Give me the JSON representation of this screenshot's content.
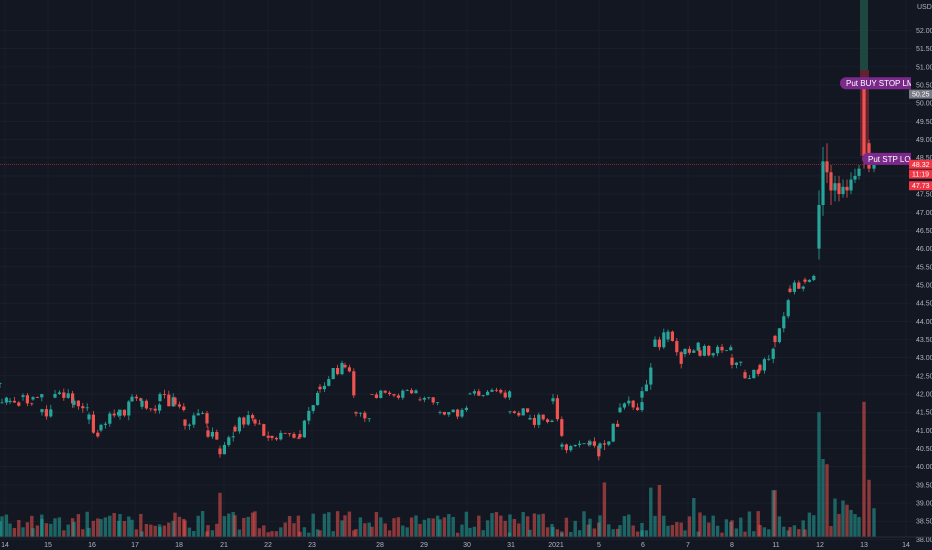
{
  "chart_data": {
    "type": "candlestick",
    "currency": "USD",
    "y_axis": {
      "ylim": [
        37.75,
        52.35
      ],
      "ticks": [
        "38.00",
        "38.50",
        "39.00",
        "39.50",
        "40.00",
        "40.50",
        "41.00",
        "41.50",
        "42.00",
        "42.50",
        "43.00",
        "43.50",
        "44.00",
        "44.50",
        "45.00",
        "45.50",
        "46.00",
        "46.50",
        "47.00",
        "47.50",
        "48.00",
        "48.50",
        "49.00",
        "49.50",
        "50.00",
        "50.50",
        "51.00",
        "51.50",
        "52.00"
      ]
    },
    "x_axis": {
      "labels": [
        "14",
        "15",
        "16",
        "17",
        "18",
        "21",
        "22",
        "23",
        "28",
        "29",
        "30",
        "31",
        "2021",
        "5",
        "6",
        "7",
        "8",
        "11",
        "12",
        "13",
        "14"
      ]
    },
    "price_tags": [
      {
        "text": "50.25",
        "value": 50.25,
        "color": "#787b86"
      },
      {
        "text": "48.32",
        "value": 48.32,
        "color": "#f23645"
      },
      {
        "text": "11:19",
        "value": 48.05,
        "color": "#f23645"
      },
      {
        "text": "47.73",
        "value": 47.73,
        "color": "#f23645"
      }
    ],
    "current_price": 48.32,
    "orders": [
      {
        "label": "Put BUY STOP LMT",
        "value": 50.55
      },
      {
        "label": "Put STP LOS",
        "value": 48.47
      }
    ],
    "highlight_band_color": "#1f4d44",
    "colors": {
      "up": "#26a69a",
      "down": "#ef5350",
      "order": "#7b2a8c",
      "grid": "#1f2330",
      "text": "#b2b5be"
    },
    "segments": [
      [
        0,
        2,
        "flat",
        42.3,
        42.3,
        0.35,
        7
      ],
      [
        2,
        10,
        "flat",
        41.75,
        41.75,
        0.2,
        8
      ],
      [
        10,
        23,
        "flat",
        41.78,
        41.78,
        0.2,
        9
      ],
      [
        23,
        33,
        "flat",
        41.92,
        41.92,
        0.2,
        10
      ],
      [
        33,
        42,
        "flat",
        41.85,
        41.85,
        0.2,
        11
      ],
      [
        42,
        55,
        "flat",
        41.5,
        41.5,
        0.22,
        12
      ],
      [
        55,
        74,
        "flat",
        41.9,
        41.9,
        0.22,
        13
      ],
      [
        74,
        89,
        "flat",
        41.7,
        41.7,
        0.22,
        14
      ],
      [
        89,
        101,
        "down",
        41.3,
        40.9,
        0.22,
        15
      ],
      [
        101,
        120,
        "up",
        41.0,
        41.6,
        0.22,
        16
      ],
      [
        120,
        132,
        "up",
        41.4,
        41.8,
        0.22,
        17
      ],
      [
        132,
        142,
        "flat",
        41.8,
        41.8,
        0.15,
        18
      ],
      [
        142,
        160,
        "flat",
        41.65,
        41.65,
        0.18,
        19
      ],
      [
        160,
        175,
        "flat",
        41.8,
        41.8,
        0.2,
        20
      ],
      [
        175,
        185,
        "down",
        41.9,
        41.3,
        0.2,
        21
      ],
      [
        185,
        208,
        "flat",
        41.3,
        41.3,
        0.2,
        22
      ],
      [
        208,
        220,
        "down",
        41.0,
        40.6,
        0.22,
        23
      ],
      [
        220,
        235,
        "up",
        40.5,
        41.1,
        0.22,
        24
      ],
      [
        235,
        255,
        "up",
        41.1,
        41.5,
        0.2,
        25
      ],
      [
        255,
        272,
        "down",
        41.3,
        40.8,
        0.2,
        26
      ],
      [
        272,
        300,
        "flat",
        40.85,
        40.85,
        0.12,
        27
      ],
      [
        300,
        320,
        "up",
        40.9,
        42.2,
        0.22,
        28
      ],
      [
        320,
        345,
        "up",
        42.2,
        42.85,
        0.2,
        29
      ],
      [
        345,
        356,
        "down",
        42.8,
        41.9,
        0.25,
        30
      ],
      [
        356,
        372,
        "flat",
        41.5,
        41.5,
        0.2,
        31
      ],
      [
        372,
        420,
        "flat",
        42.0,
        42.0,
        0.12,
        32
      ],
      [
        420,
        440,
        "flat",
        41.85,
        41.85,
        0.15,
        33
      ],
      [
        440,
        470,
        "flat",
        41.5,
        41.5,
        0.12,
        34
      ],
      [
        470,
        510,
        "flat",
        42.0,
        42.0,
        0.12,
        35
      ],
      [
        510,
        530,
        "flat",
        41.5,
        41.5,
        0.12,
        36
      ],
      [
        530,
        553,
        "flat",
        41.3,
        41.3,
        0.15,
        37
      ],
      [
        553,
        562,
        "down",
        41.8,
        40.7,
        0.25,
        38
      ],
      [
        562,
        590,
        "flat",
        40.55,
        40.55,
        0.15,
        39
      ],
      [
        590,
        600,
        "down",
        40.6,
        40.3,
        0.2,
        40
      ],
      [
        600,
        620,
        "up",
        40.5,
        41.3,
        0.25,
        41
      ],
      [
        620,
        642,
        "up",
        41.5,
        41.8,
        0.2,
        42
      ],
      [
        642,
        655,
        "up",
        41.9,
        42.9,
        0.25,
        43
      ],
      [
        655,
        668,
        "up",
        43.3,
        43.8,
        0.25,
        44
      ],
      [
        668,
        685,
        "down",
        43.5,
        42.9,
        0.25,
        45
      ],
      [
        685,
        700,
        "up",
        43.1,
        43.4,
        0.15,
        46
      ],
      [
        700,
        732,
        "flat",
        43.2,
        43.2,
        0.15,
        47
      ],
      [
        732,
        745,
        "down",
        43.0,
        42.6,
        0.22,
        48
      ],
      [
        745,
        760,
        "flat",
        42.6,
        42.6,
        0.2,
        49
      ],
      [
        760,
        775,
        "up",
        42.8,
        43.1,
        0.2,
        50
      ],
      [
        775,
        790,
        "up",
        43.6,
        44.7,
        0.25,
        51
      ],
      [
        790,
        805,
        "up",
        44.9,
        45.1,
        0.15,
        52
      ],
      [
        805,
        817,
        "flat",
        45.15,
        45.15,
        0.12,
        53
      ]
    ],
    "explicit_candles": [
      [
        819,
        46.0,
        47.2,
        47.6,
        45.7
      ],
      [
        823,
        47.2,
        48.4,
        48.8,
        46.9
      ],
      [
        827,
        48.4,
        48.1,
        48.9,
        47.8
      ],
      [
        831,
        48.1,
        47.6,
        48.3,
        47.2
      ],
      [
        835,
        47.6,
        47.8,
        48.0,
        47.3
      ],
      [
        839,
        47.8,
        47.5,
        48.0,
        47.3
      ],
      [
        843,
        47.5,
        47.7,
        47.9,
        47.4
      ],
      [
        847,
        47.7,
        47.6,
        47.9,
        47.4
      ],
      [
        851,
        47.6,
        47.9,
        48.1,
        47.5
      ],
      [
        855,
        47.9,
        48.0,
        48.2,
        47.8
      ],
      [
        859,
        48.0,
        48.2,
        48.3,
        47.9
      ],
      [
        864,
        50.4,
        48.5,
        50.6,
        48.2
      ],
      [
        869,
        48.9,
        48.2,
        49.0,
        48.1
      ],
      [
        874,
        48.2,
        48.3,
        48.4,
        48.1
      ]
    ],
    "volume_spikes": [
      [
        219,
        17
      ],
      [
        603,
        21
      ],
      [
        651,
        19
      ],
      [
        661,
        20
      ],
      [
        696,
        15
      ],
      [
        775,
        18
      ],
      [
        818,
        48
      ],
      [
        823,
        30
      ],
      [
        826,
        28
      ],
      [
        862,
        52
      ],
      [
        866,
        22
      ]
    ]
  }
}
